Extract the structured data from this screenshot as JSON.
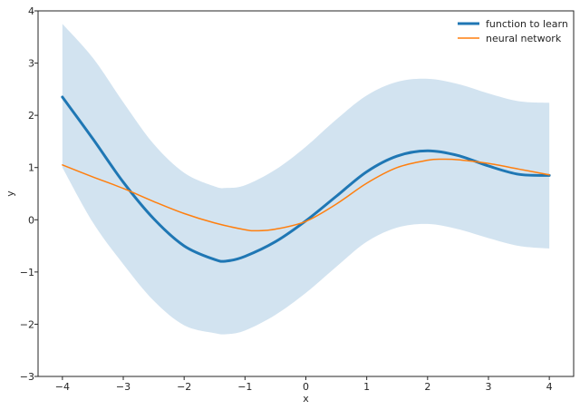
{
  "chart_data": {
    "type": "line",
    "title": "",
    "xlabel": "x",
    "ylabel": "y",
    "xlim": [
      -4.4,
      4.4
    ],
    "ylim": [
      -3,
      4
    ],
    "xticks": [
      -4,
      -3,
      -2,
      -1,
      0,
      1,
      2,
      3,
      4
    ],
    "yticks": [
      -3,
      -2,
      -1,
      0,
      1,
      2,
      3,
      4
    ],
    "xtick_labels": [
      "−4",
      "−3",
      "−2",
      "−1",
      "0",
      "1",
      "2",
      "3",
      "4"
    ],
    "ytick_labels": [
      "−3",
      "−2",
      "−1",
      "0",
      "1",
      "2",
      "3",
      "4"
    ],
    "grid": false,
    "legend_position": "top-right",
    "series": [
      {
        "name": "function to learn",
        "color": "#1f77b4",
        "x": [
          -4.0,
          -3.5,
          -3.0,
          -2.5,
          -2.0,
          -1.5,
          -1.3,
          -1.0,
          -0.5,
          0.0,
          0.5,
          1.0,
          1.5,
          2.0,
          2.5,
          3.0,
          3.5,
          4.0
        ],
        "y": [
          2.35,
          1.55,
          0.72,
          0.02,
          -0.5,
          -0.76,
          -0.79,
          -0.7,
          -0.42,
          -0.02,
          0.45,
          0.92,
          1.22,
          1.32,
          1.23,
          1.03,
          0.87,
          0.85
        ]
      },
      {
        "name": "neural network",
        "color": "#ff7f0e",
        "x": [
          -4.0,
          -3.5,
          -3.0,
          -2.5,
          -2.0,
          -1.5,
          -1.0,
          -0.8,
          -0.5,
          0.0,
          0.5,
          1.0,
          1.5,
          2.0,
          2.25,
          2.5,
          3.0,
          3.5,
          4.0
        ],
        "y": [
          1.05,
          0.82,
          0.6,
          0.35,
          0.12,
          -0.06,
          -0.19,
          -0.21,
          -0.18,
          -0.03,
          0.3,
          0.7,
          1.0,
          1.14,
          1.16,
          1.15,
          1.08,
          0.97,
          0.86
        ]
      }
    ],
    "confidence_band": {
      "color": "#a6c8e2",
      "x": [
        -4.0,
        -3.5,
        -3.0,
        -2.5,
        -2.0,
        -1.5,
        -1.3,
        -1.0,
        -0.5,
        0.0,
        0.5,
        1.0,
        1.5,
        2.0,
        2.5,
        3.0,
        3.5,
        4.0
      ],
      "upper": [
        3.75,
        3.1,
        2.25,
        1.45,
        0.9,
        0.64,
        0.61,
        0.66,
        0.96,
        1.4,
        1.92,
        2.38,
        2.64,
        2.7,
        2.6,
        2.42,
        2.27,
        2.24
      ],
      "lower": [
        1.0,
        -0.05,
        -0.85,
        -1.55,
        -2.02,
        -2.17,
        -2.19,
        -2.12,
        -1.82,
        -1.4,
        -0.9,
        -0.42,
        -0.15,
        -0.08,
        -0.18,
        -0.35,
        -0.5,
        -0.55
      ]
    }
  }
}
